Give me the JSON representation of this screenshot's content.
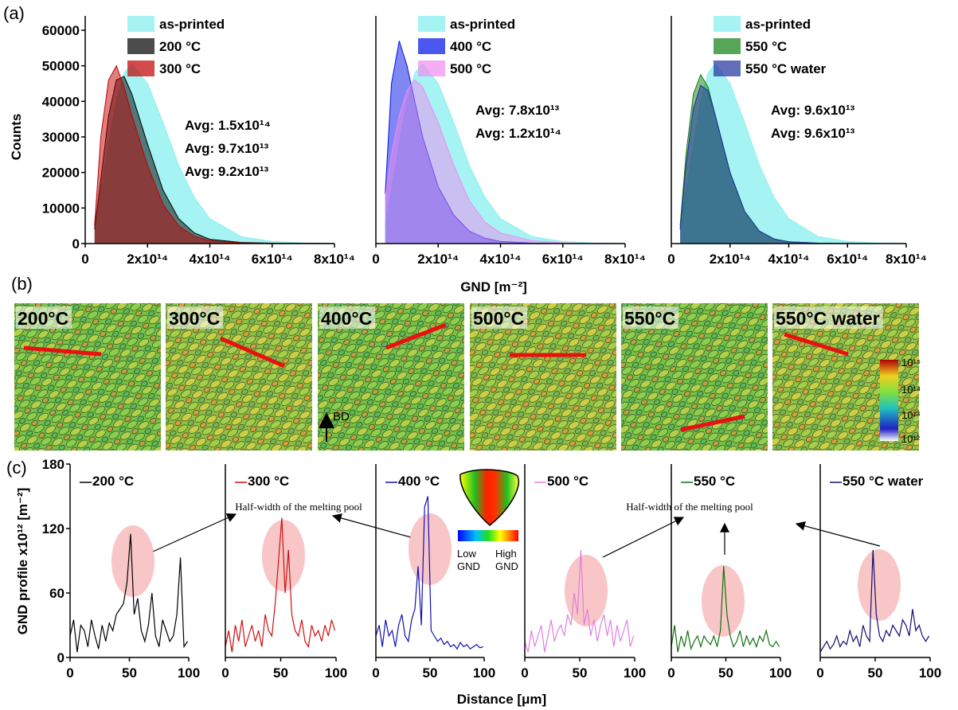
{
  "chart_data": [
    {
      "type": "area",
      "ylabel": "Counts",
      "x": [
        30000000000000.0,
        50000000000000.0,
        75000000000000.0,
        100000000000000.0,
        125000000000000.0,
        150000000000000.0,
        200000000000000.0,
        250000000000000.0,
        300000000000000.0,
        350000000000000.0,
        400000000000000.0,
        500000000000000.0,
        600000000000000.0,
        700000000000000.0,
        800000000000000.0
      ],
      "series": [
        {
          "name": "as-printed",
          "color": "#8ff0f0",
          "values": [
            5000,
            15000,
            28000,
            40000,
            48000,
            50500,
            45000,
            34000,
            22000,
            13000,
            7000,
            2000,
            600,
            200,
            100
          ]
        },
        {
          "name": "200 °C",
          "color": "#000000",
          "values": [
            4000,
            18000,
            36000,
            46000,
            47000,
            42000,
            28000,
            15000,
            7000,
            3000,
            1200,
            300,
            100,
            50,
            20
          ]
        },
        {
          "name": "300 °C",
          "color": "#c00000",
          "values": [
            5000,
            30000,
            46000,
            50000,
            44000,
            36000,
            22000,
            11000,
            5000,
            2000,
            800,
            200,
            60,
            20,
            10
          ]
        }
      ],
      "annotations": [
        {
          "text": "Avg: 1.5x10¹⁴",
          "color": "#3cd6d6"
        },
        {
          "text": "Avg: 9.7x10¹³",
          "color": "#000000"
        },
        {
          "text": "Avg: 9.2x10¹³",
          "color": "#e02020"
        }
      ],
      "xlim": [
        0,
        800000000000000.0
      ],
      "ylim": [
        0,
        60000
      ],
      "xticks": [
        0,
        {
          "value": 200000000000000.0,
          "label": "2x10¹⁴"
        },
        {
          "value": 400000000000000.0,
          "label": "4x10¹⁴"
        },
        {
          "value": 600000000000000.0,
          "label": "6x10¹⁴"
        },
        {
          "value": 800000000000000.0,
          "label": "8x10¹⁴"
        }
      ],
      "yticks": [
        0,
        10000,
        20000,
        30000,
        40000,
        50000,
        60000
      ]
    },
    {
      "type": "area",
      "xlabel": "GND [m⁻²]",
      "x": [
        30000000000000.0,
        50000000000000.0,
        75000000000000.0,
        100000000000000.0,
        125000000000000.0,
        150000000000000.0,
        200000000000000.0,
        250000000000000.0,
        300000000000000.0,
        350000000000000.0,
        400000000000000.0,
        500000000000000.0,
        600000000000000.0,
        700000000000000.0,
        800000000000000.0
      ],
      "series": [
        {
          "name": "as-printed",
          "color": "#8ff0f0",
          "values": [
            5000,
            15000,
            28000,
            40000,
            48000,
            50500,
            45000,
            34000,
            22000,
            13000,
            7000,
            2000,
            600,
            200,
            100
          ]
        },
        {
          "name": "400 °C",
          "color": "#0010e8",
          "values": [
            14000,
            45000,
            57000,
            50000,
            40000,
            30000,
            16000,
            8000,
            3500,
            1500,
            600,
            150,
            40,
            10,
            5
          ]
        },
        {
          "name": "500 °C",
          "color": "#f08cf0",
          "values": [
            13000,
            25000,
            36000,
            43000,
            46000,
            44000,
            34000,
            22000,
            12000,
            6000,
            3000,
            800,
            200,
            60,
            20
          ]
        }
      ],
      "annotations": [
        {
          "text": "Avg: 7.8x10¹³",
          "color": "#1010d0"
        },
        {
          "text": "Avg: 1.2x10¹⁴",
          "color": "#e080e0"
        }
      ],
      "xlim": [
        0,
        800000000000000.0
      ],
      "ylim": [
        0,
        60000
      ],
      "xticks": [
        0,
        {
          "value": 200000000000000.0,
          "label": "2x10¹⁴"
        },
        {
          "value": 400000000000000.0,
          "label": "4x10¹⁴"
        },
        {
          "value": 600000000000000.0,
          "label": "6x10¹⁴"
        },
        {
          "value": 800000000000000.0,
          "label": "8x10¹⁴"
        }
      ]
    },
    {
      "type": "area",
      "x": [
        30000000000000.0,
        50000000000000.0,
        75000000000000.0,
        100000000000000.0,
        125000000000000.0,
        150000000000000.0,
        200000000000000.0,
        250000000000000.0,
        300000000000000.0,
        350000000000000.0,
        400000000000000.0,
        500000000000000.0,
        600000000000000.0,
        700000000000000.0,
        800000000000000.0
      ],
      "series": [
        {
          "name": "as-printed",
          "color": "#8ff0f0",
          "values": [
            5000,
            15000,
            28000,
            40000,
            48000,
            50500,
            45000,
            34000,
            22000,
            13000,
            7000,
            2000,
            600,
            200,
            100
          ]
        },
        {
          "name": "550 °C",
          "color": "#108010",
          "values": [
            5000,
            25000,
            42000,
            47500,
            44000,
            36000,
            20000,
            9000,
            3500,
            1300,
            500,
            100,
            30,
            10,
            5
          ]
        },
        {
          "name": "550 °C water",
          "color": "#2030a0",
          "values": [
            4000,
            22000,
            38000,
            44500,
            43000,
            36000,
            20000,
            9000,
            3500,
            1300,
            500,
            100,
            30,
            10,
            5
          ]
        }
      ],
      "annotations": [
        {
          "text": "Avg: 9.6x10¹³",
          "color": "#108010"
        },
        {
          "text": "Avg: 9.6x10¹³",
          "color": "#1a2a8a"
        }
      ],
      "xlim": [
        0,
        800000000000000.0
      ],
      "ylim": [
        0,
        60000
      ],
      "xticks": [
        0,
        {
          "value": 200000000000000.0,
          "label": "2x10¹⁴"
        },
        {
          "value": 400000000000000.0,
          "label": "4x10¹⁴"
        },
        {
          "value": 600000000000000.0,
          "label": "6x10¹⁴"
        },
        {
          "value": 800000000000000.0,
          "label": "8x10¹⁴"
        }
      ]
    },
    {
      "type": "line",
      "ylabel": "GND profile x10¹² [m⁻²]",
      "x": [
        0,
        3,
        6,
        9,
        12,
        15,
        18,
        21,
        24,
        27,
        30,
        33,
        36,
        39,
        42,
        45,
        48,
        51,
        54,
        57,
        60,
        63,
        66,
        69,
        72,
        75,
        78,
        81,
        84,
        87,
        90,
        93,
        96,
        99
      ],
      "series": [
        {
          "name": "200 °C",
          "color": "#000000",
          "values": [
            20,
            35,
            5,
            30,
            25,
            10,
            35,
            20,
            8,
            30,
            15,
            32,
            25,
            40,
            45,
            50,
            70,
            115,
            40,
            55,
            25,
            15,
            30,
            60,
            20,
            10,
            35,
            25,
            15,
            20,
            40,
            93,
            10,
            15
          ]
        }
      ],
      "xlim": [
        0,
        100
      ],
      "ylim": [
        0,
        180
      ],
      "xticks": [
        0,
        50,
        100
      ],
      "yticks": [
        0,
        60,
        120,
        180
      ]
    },
    {
      "type": "line",
      "x": [
        0,
        3,
        6,
        9,
        12,
        15,
        18,
        21,
        24,
        27,
        30,
        33,
        36,
        39,
        42,
        45,
        48,
        51,
        54,
        57,
        60,
        63,
        66,
        69,
        72,
        75,
        78,
        81,
        84,
        87,
        90,
        93,
        96,
        99
      ],
      "series": [
        {
          "name": "300 °C",
          "color": "#d01010",
          "values": [
            10,
            25,
            5,
            30,
            15,
            35,
            10,
            20,
            30,
            15,
            25,
            10,
            40,
            25,
            20,
            50,
            90,
            130,
            60,
            100,
            40,
            25,
            20,
            35,
            15,
            10,
            30,
            20,
            25,
            15,
            30,
            20,
            35,
            25
          ]
        }
      ],
      "xlim": [
        0,
        100
      ],
      "ylim": [
        0,
        180
      ],
      "xticks": [
        0,
        50,
        100
      ]
    },
    {
      "type": "line",
      "xlabel": "Distance [μm]",
      "x": [
        0,
        3,
        6,
        9,
        12,
        15,
        18,
        21,
        24,
        27,
        30,
        33,
        36,
        39,
        42,
        45,
        48,
        51,
        54,
        57,
        60,
        63,
        66,
        69,
        72,
        75,
        78,
        81,
        84,
        87,
        90,
        93,
        96,
        99
      ],
      "series": [
        {
          "name": "400 °C",
          "color": "#1010b0",
          "values": [
            20,
            30,
            10,
            35,
            20,
            25,
            10,
            30,
            40,
            20,
            15,
            35,
            45,
            85,
            30,
            140,
            150,
            25,
            20,
            15,
            18,
            12,
            15,
            10,
            12,
            8,
            14,
            10,
            12,
            8,
            10,
            12,
            9,
            10
          ]
        }
      ],
      "xlim": [
        0,
        100
      ],
      "ylim": [
        0,
        180
      ],
      "xticks": [
        0,
        50,
        100
      ]
    },
    {
      "type": "line",
      "x": [
        0,
        3,
        6,
        9,
        12,
        15,
        18,
        21,
        24,
        27,
        30,
        33,
        36,
        39,
        42,
        45,
        48,
        51,
        54,
        57,
        60,
        63,
        66,
        69,
        72,
        75,
        78,
        81,
        84,
        87,
        90,
        93,
        96,
        99
      ],
      "series": [
        {
          "name": "500 °C",
          "color": "#e080e0",
          "values": [
            15,
            5,
            25,
            10,
            20,
            30,
            5,
            20,
            35,
            15,
            25,
            30,
            20,
            40,
            30,
            60,
            40,
            100,
            30,
            45,
            20,
            35,
            15,
            30,
            40,
            20,
            35,
            10,
            30,
            15,
            25,
            35,
            10,
            20
          ]
        }
      ],
      "xlim": [
        0,
        100
      ],
      "ylim": [
        0,
        180
      ],
      "xticks": [
        0,
        50,
        100
      ]
    },
    {
      "type": "line",
      "x": [
        0,
        3,
        6,
        9,
        12,
        15,
        18,
        21,
        24,
        27,
        30,
        33,
        36,
        39,
        42,
        45,
        48,
        51,
        54,
        57,
        60,
        63,
        66,
        69,
        72,
        75,
        78,
        81,
        84,
        87,
        90,
        93,
        96,
        99
      ],
      "series": [
        {
          "name": "550 °C",
          "color": "#107010",
          "values": [
            10,
            30,
            5,
            20,
            10,
            25,
            8,
            15,
            20,
            10,
            20,
            15,
            12,
            20,
            10,
            25,
            85,
            40,
            20,
            10,
            15,
            25,
            10,
            20,
            12,
            18,
            10,
            20,
            15,
            25,
            12,
            10,
            15,
            10
          ]
        }
      ],
      "xlim": [
        0,
        100
      ],
      "ylim": [
        0,
        180
      ],
      "xticks": [
        0,
        50,
        100
      ]
    },
    {
      "type": "line",
      "x": [
        0,
        3,
        6,
        9,
        12,
        15,
        18,
        21,
        24,
        27,
        30,
        33,
        36,
        39,
        42,
        45,
        48,
        51,
        54,
        57,
        60,
        63,
        66,
        69,
        72,
        75,
        78,
        81,
        84,
        87,
        90,
        93,
        96,
        99
      ],
      "series": [
        {
          "name": "550 °C water",
          "color": "#101070",
          "values": [
            5,
            10,
            15,
            8,
            12,
            20,
            10,
            15,
            12,
            25,
            15,
            20,
            10,
            30,
            20,
            15,
            100,
            40,
            20,
            15,
            25,
            20,
            30,
            25,
            20,
            35,
            30,
            20,
            45,
            25,
            30,
            20,
            15,
            20
          ]
        }
      ],
      "xlim": [
        0,
        100
      ],
      "ylim": [
        0,
        180
      ],
      "xticks": [
        0,
        50,
        100
      ]
    }
  ],
  "panel_labels": [
    "(a)",
    "(b)",
    "(c)"
  ],
  "micrographs": [
    {
      "label": "200°C",
      "color": "#000000"
    },
    {
      "label": "300°C",
      "color": "#e01010"
    },
    {
      "label": "400°C",
      "color": "#1010c0"
    },
    {
      "label": "500°C",
      "color": "#f0a0f0"
    },
    {
      "label": "550°C",
      "color": "#7a9a7a"
    },
    {
      "label": "550°C water",
      "color": "#1a2a7a"
    }
  ],
  "build_direction": "BD",
  "colorbar_labels": [
    "10¹⁵",
    "10¹⁴",
    "10¹³",
    "10¹²"
  ],
  "melt_pool_notes": [
    "Half-width of the melting pool",
    "Half-width of the melting pool"
  ],
  "inset": {
    "low": [
      "Low",
      "GND"
    ],
    "high": [
      "High",
      "GND"
    ]
  }
}
